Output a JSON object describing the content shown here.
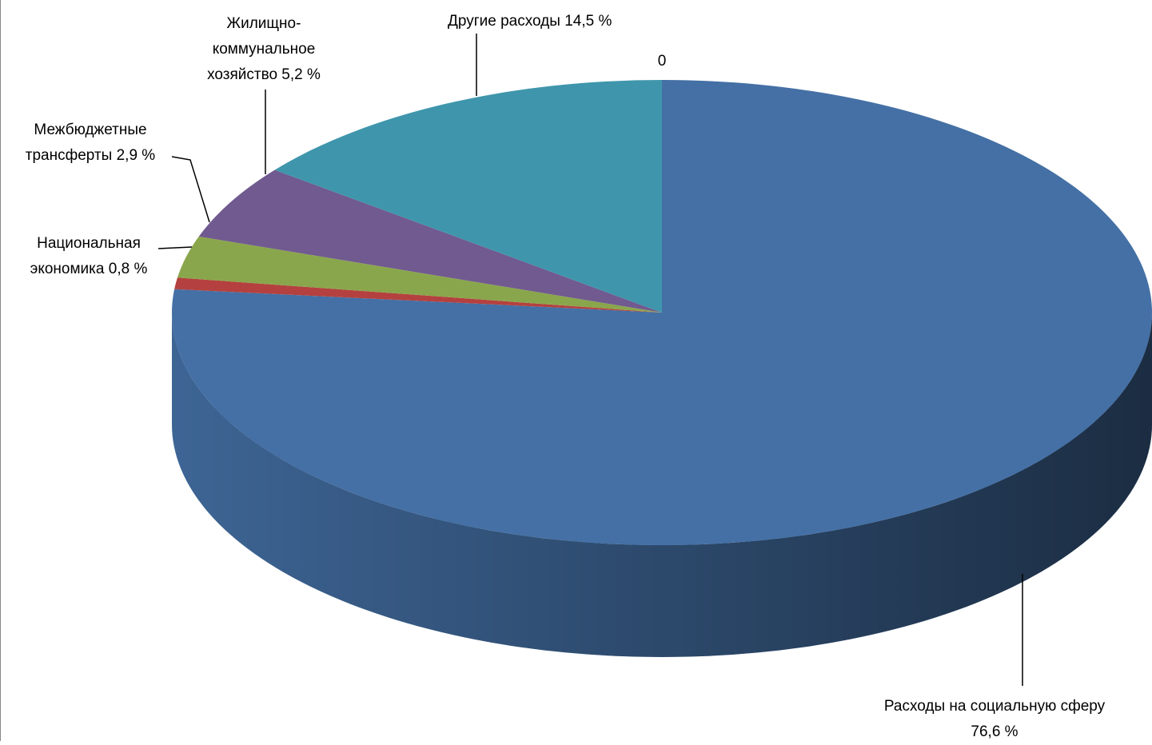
{
  "chart_data": {
    "type": "pie3d",
    "annotation": "0",
    "categories": [
      "Расходы на социальную сферу",
      "Национальная экономика",
      "Межбюджетные трансферты",
      "Жилищно-коммунальное хозяйство",
      "Другие расходы"
    ],
    "values": [
      76.6,
      0.8,
      2.9,
      5.2,
      14.5
    ],
    "value_labels": [
      "76,6 %",
      "0,8 %",
      "2,9 %",
      "5,2 %",
      "14,5 %"
    ],
    "colors": [
      "#4470a5",
      "#b4413f",
      "#8aa64c",
      "#705a8f",
      "#3f96ac"
    ]
  }
}
